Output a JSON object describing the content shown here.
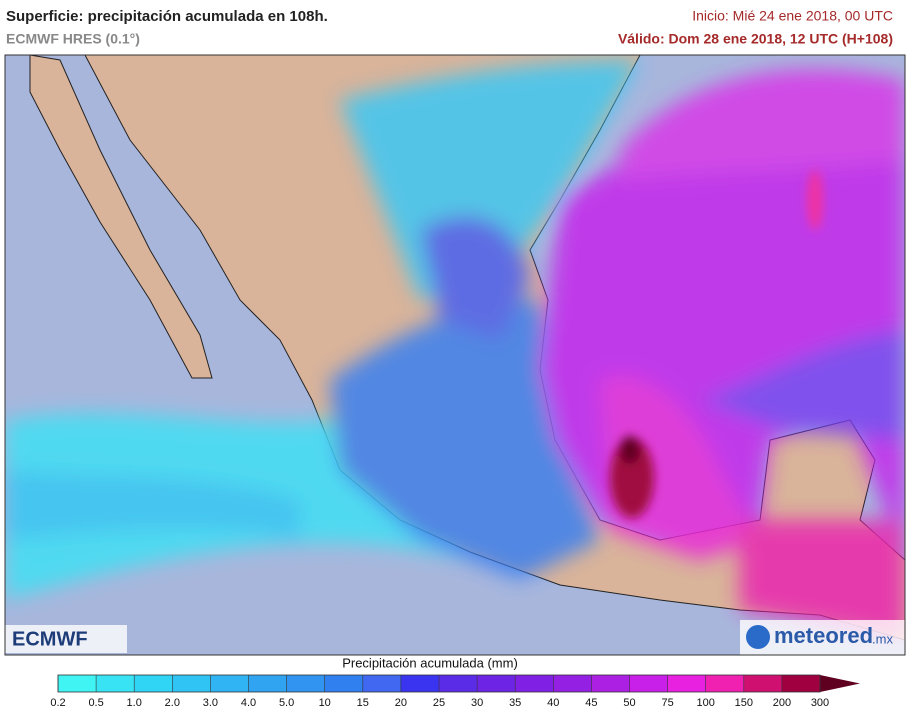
{
  "header": {
    "title": "Superficie: precipitación acumulada en 108h.",
    "model": "ECMWF HRES (0.1°)",
    "start": "Inicio: Mié 24 ene 2018, 00 UTC",
    "valid": "Válido: Dom 28 ene 2018, 12 UTC (H+108)"
  },
  "logos": {
    "left": "ECMWF",
    "right": "meteored",
    "right_suffix": ".mx"
  },
  "colorbar": {
    "label": "Precipitación acumulada (mm)",
    "ticks": [
      "0.2",
      "0.5",
      "1.0",
      "2.0",
      "3.0",
      "4.0",
      "5.0",
      "10",
      "15",
      "20",
      "25",
      "30",
      "35",
      "40",
      "45",
      "50",
      "75",
      "100",
      "150",
      "200",
      "300"
    ],
    "colors": [
      "#40f4f4",
      "#38e4f4",
      "#30d4f4",
      "#30c4f4",
      "#30b4f4",
      "#30a4f0",
      "#3094f0",
      "#3080f0",
      "#4068f0",
      "#3a34f0",
      "#5a2ce8",
      "#6e24e4",
      "#8020e4",
      "#9420e4",
      "#ac20e4",
      "#c820e8",
      "#e820e0",
      "#f020b0",
      "#d01070",
      "#a00040"
    ],
    "extend_color": "#600020"
  }
}
